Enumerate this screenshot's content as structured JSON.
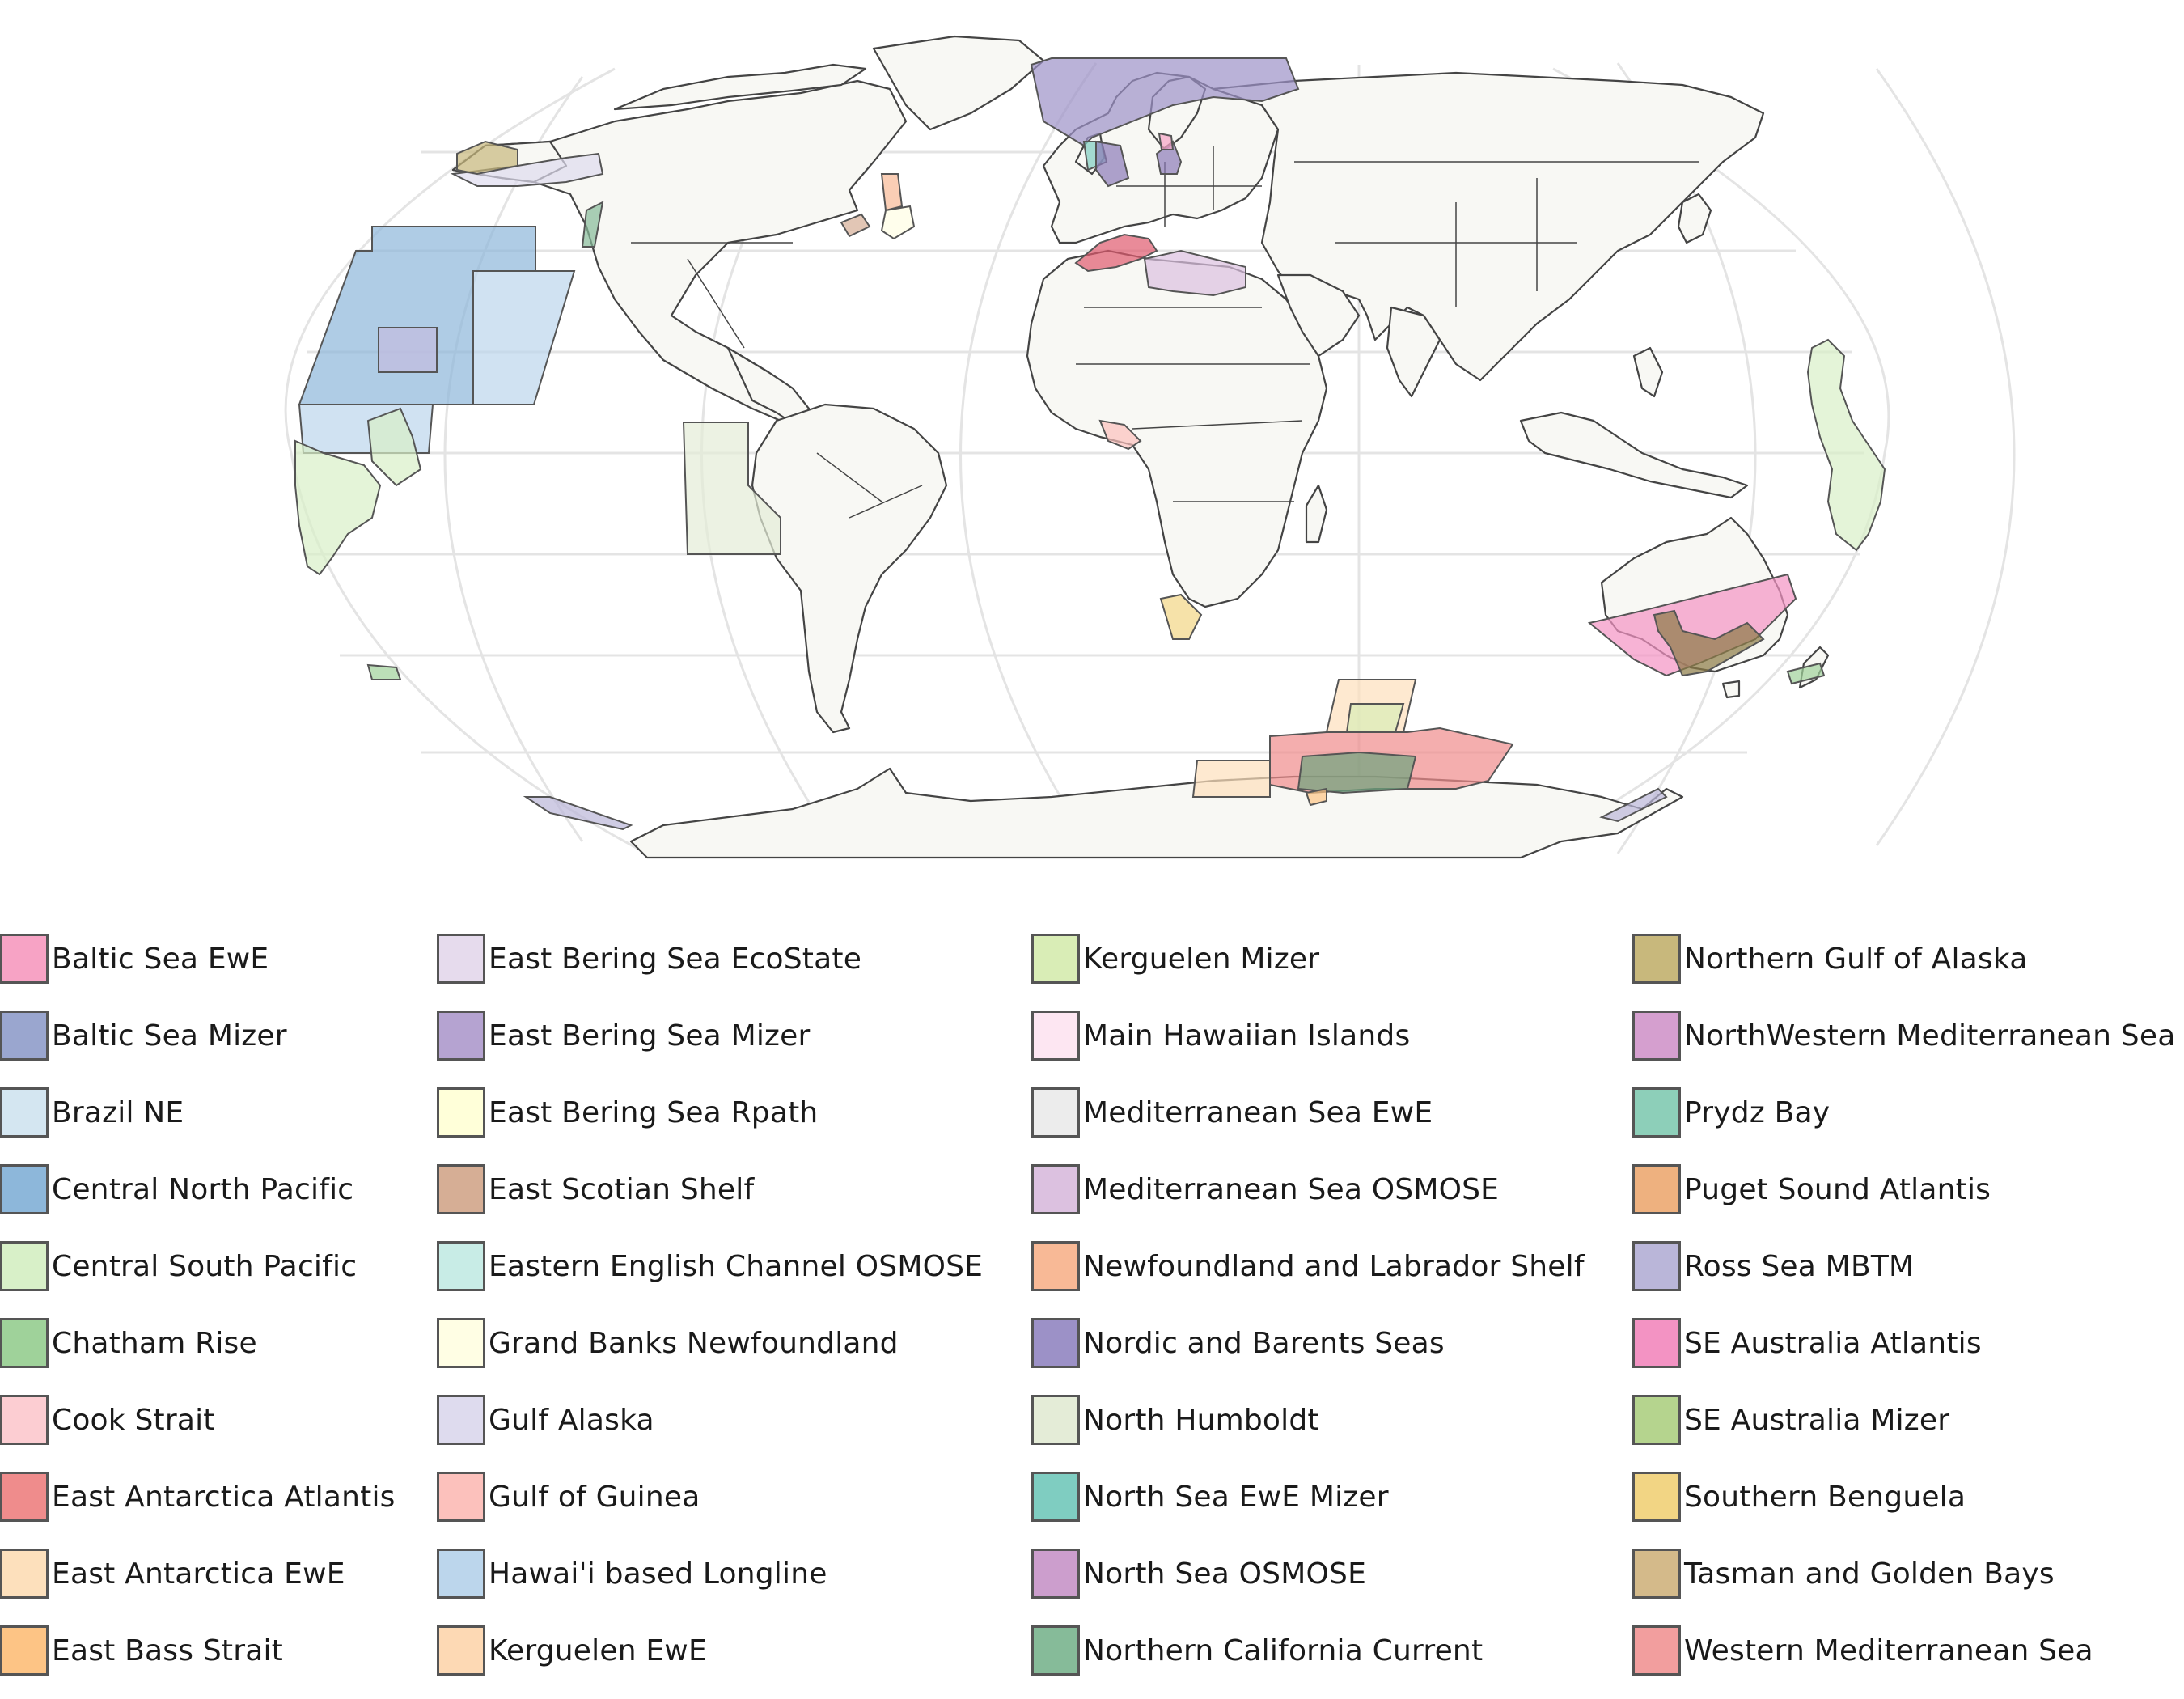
{
  "map": {
    "projection": "Robinson",
    "land_color": "#f8f8f4",
    "border_color": "#444444",
    "graticule_color": "#e4e4e4"
  },
  "legend": {
    "columns": [
      [
        {
          "label": "Baltic Sea EwE",
          "color": "#f7a3c5"
        },
        {
          "label": "Baltic Sea Mizer",
          "color": "#9aa6cf"
        },
        {
          "label": "Brazil NE",
          "color": "#d4e6f1"
        },
        {
          "label": "Central North Pacific",
          "color": "#8db7da"
        },
        {
          "label": "Central South Pacific",
          "color": "#d8f0c8"
        },
        {
          "label": "Chatham Rise",
          "color": "#9fd29a"
        },
        {
          "label": "Cook Strait",
          "color": "#fccdd2"
        },
        {
          "label": "East Antarctica Atlantis",
          "color": "#ef8c8c"
        },
        {
          "label": "East Antarctica EwE",
          "color": "#fde0bc"
        },
        {
          "label": "East Bass Strait",
          "color": "#fdc485"
        }
      ],
      [
        {
          "label": "East Bering Sea EcoState",
          "color": "#e6dbed"
        },
        {
          "label": "East Bering Sea Mizer",
          "color": "#b5a3d1"
        },
        {
          "label": "East Bering Sea Rpath",
          "color": "#ffffd9"
        },
        {
          "label": "East Scotian Shelf",
          "color": "#d6ae95"
        },
        {
          "label": "Eastern English Channel OSMOSE",
          "color": "#c8ece6"
        },
        {
          "label": "Grand Banks Newfoundland",
          "color": "#fffee4"
        },
        {
          "label": "Gulf Alaska",
          "color": "#dedbee"
        },
        {
          "label": "Gulf of Guinea",
          "color": "#fcc1bc"
        },
        {
          "label": "Hawai'i based Longline",
          "color": "#bcd6ec"
        },
        {
          "label": "Kerguelen EwE",
          "color": "#fdd9b4"
        }
      ],
      [
        {
          "label": "Kerguelen Mizer",
          "color": "#d9edb6"
        },
        {
          "label": "Main Hawaiian Islands",
          "color": "#fde6f2"
        },
        {
          "label": "Mediterranean Sea EwE",
          "color": "#ececec"
        },
        {
          "label": "Mediterranean Sea OSMOSE",
          "color": "#dcc1e0"
        },
        {
          "label": "Newfoundland and Labrador Shelf",
          "color": "#f8b996"
        },
        {
          "label": "Nordic and Barents Seas",
          "color": "#9c91c7"
        },
        {
          "label": "North Humboldt",
          "color": "#e4ecd7"
        },
        {
          "label": "North Sea EwE Mizer",
          "color": "#7fcdc1"
        },
        {
          "label": "North Sea OSMOSE",
          "color": "#cc9ecd"
        },
        {
          "label": "Northern California Current",
          "color": "#86bb99"
        }
      ],
      [
        {
          "label": "Northern Gulf of Alaska",
          "color": "#c8b87c"
        },
        {
          "label": "NorthWestern Mediterranean Sea",
          "color": "#d59fcf"
        },
        {
          "label": "Prydz Bay",
          "color": "#8dcfb9"
        },
        {
          "label": "Puget Sound Atlantis",
          "color": "#eeb17f"
        },
        {
          "label": "Ross Sea MBTM",
          "color": "#bab6d9"
        },
        {
          "label": "SE Australia Atlantis",
          "color": "#f393c3"
        },
        {
          "label": "SE Australia Mizer",
          "color": "#b5d48e"
        },
        {
          "label": "Southern Benguela",
          "color": "#f2d584"
        },
        {
          "label": "Tasman and Golden Bays",
          "color": "#d4ba8a"
        },
        {
          "label": "Western Mediterranean Sea",
          "color": "#f29e9e"
        }
      ]
    ]
  }
}
